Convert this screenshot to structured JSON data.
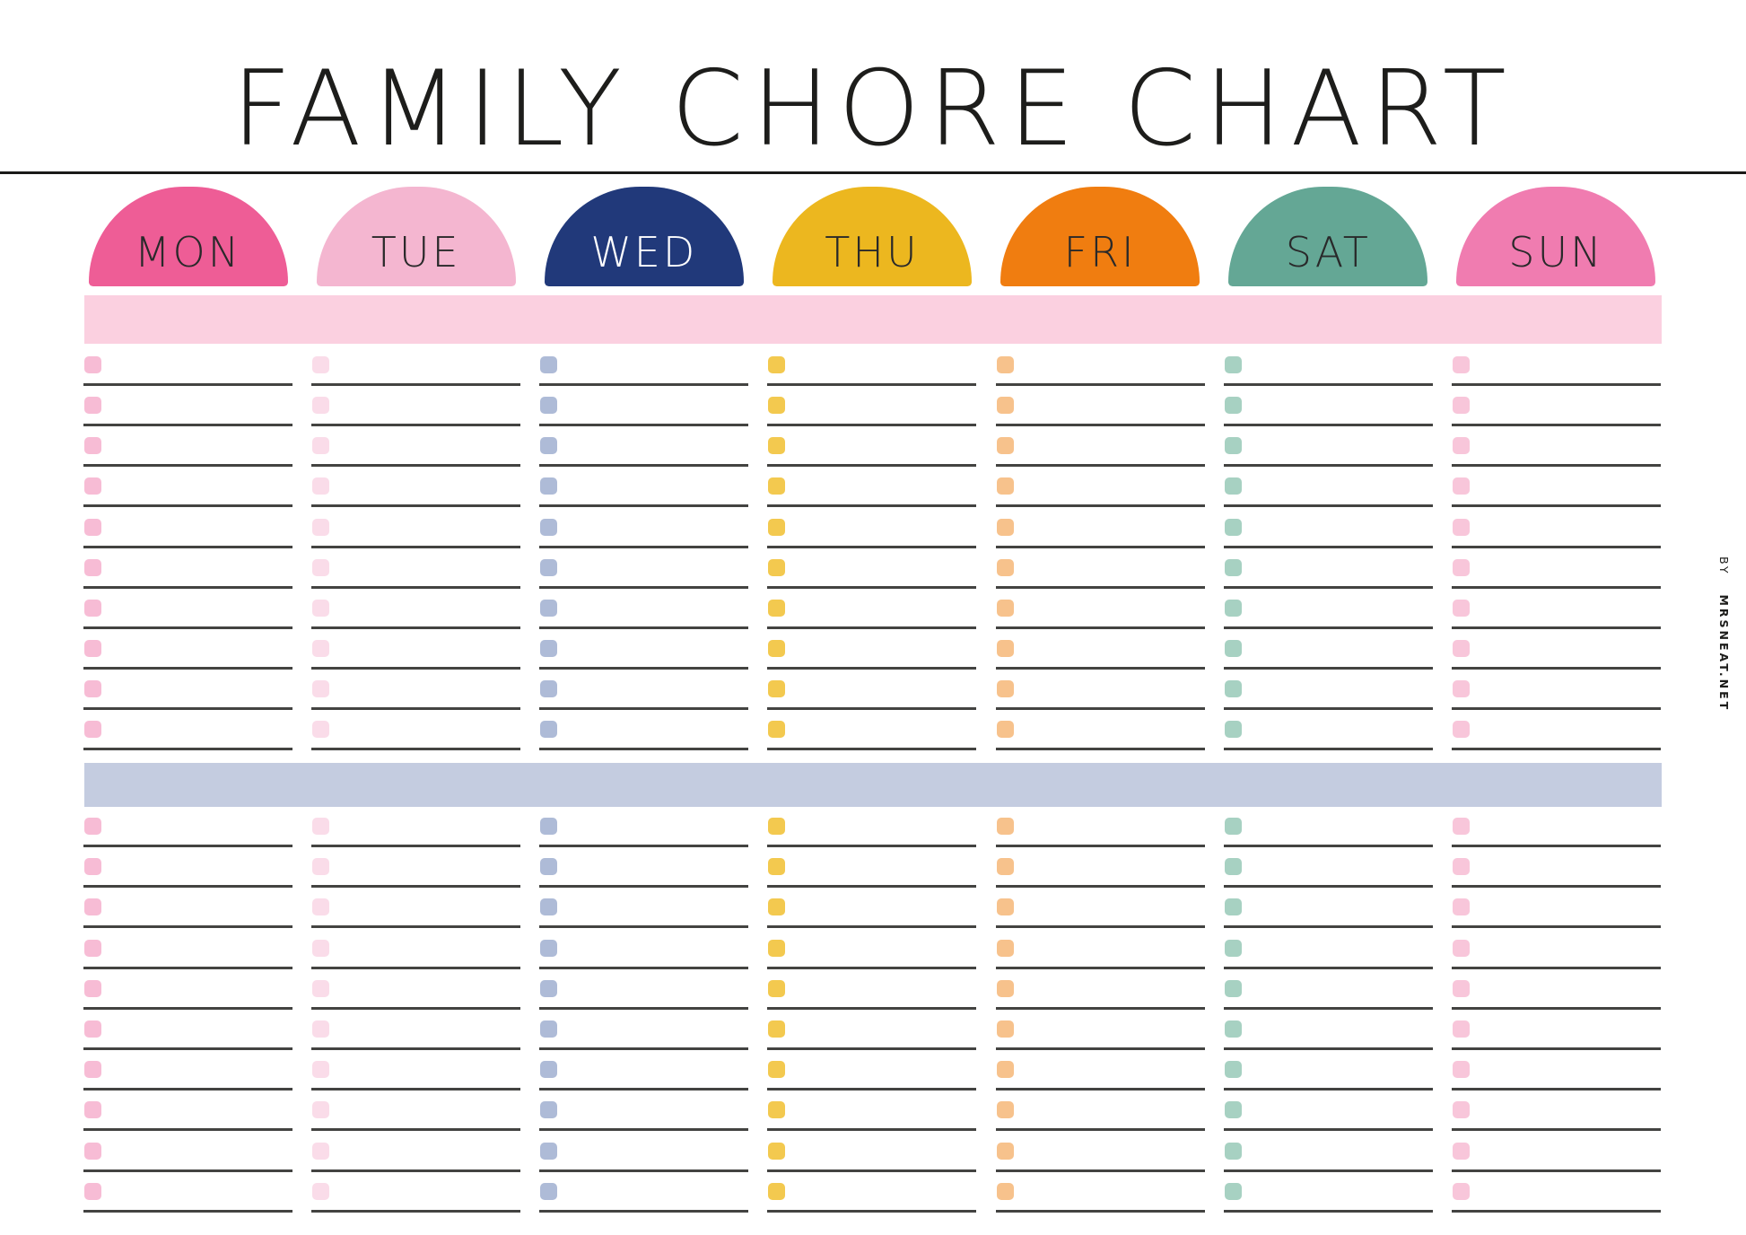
{
  "title": "FAMILY CHORE CHART",
  "credit": {
    "prefix": "BY",
    "name": "MRSNEAT.NET"
  },
  "days": [
    {
      "label": "MON",
      "color": "#ee5d96",
      "text_color": "#29292a",
      "checkbox_color": "#f7bcd5"
    },
    {
      "label": "TUE",
      "color": "#f4b6d0",
      "text_color": "#29292a",
      "checkbox_color": "#fadce9"
    },
    {
      "label": "WED",
      "color": "#21397a",
      "text_color": "#ffffff",
      "checkbox_color": "#aebbd7"
    },
    {
      "label": "THU",
      "color": "#ecb71f",
      "text_color": "#29292a",
      "checkbox_color": "#f3c94f"
    },
    {
      "label": "FRI",
      "color": "#f07d10",
      "text_color": "#29292a",
      "checkbox_color": "#f7c28c"
    },
    {
      "label": "SAT",
      "color": "#64a795",
      "text_color": "#29292a",
      "checkbox_color": "#a7d1c2"
    },
    {
      "label": "SUN",
      "color": "#f07cb0",
      "text_color": "#29292a",
      "checkbox_color": "#f8c6da"
    }
  ],
  "sections": [
    {
      "name": "section-1",
      "band_color": "#fbd0e0",
      "rows": 10
    },
    {
      "name": "section-2",
      "band_color": "#c4cce0",
      "rows": 10
    }
  ],
  "line_color": "#434341"
}
